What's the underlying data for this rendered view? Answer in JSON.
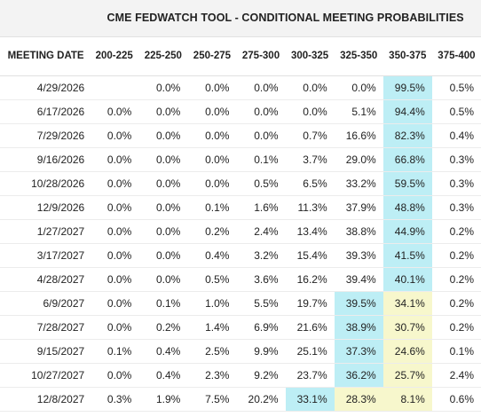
{
  "title": "CME FEDWATCH TOOL - CONDITIONAL MEETING PROBABILITIES",
  "date_header": "MEETING DATE",
  "colors": {
    "highest": "#bdeef5",
    "second": "#f7f7cc",
    "title_bg": "#f3f3f3"
  },
  "chart_data": {
    "type": "table",
    "title": "CME FEDWATCH TOOL - CONDITIONAL MEETING PROBABILITIES",
    "columns": [
      "200-225",
      "225-250",
      "250-275",
      "275-300",
      "300-325",
      "325-350",
      "350-375",
      "375-400"
    ],
    "rows": [
      {
        "date": "4/29/2026",
        "values": [
          "",
          "0.0%",
          "0.0%",
          "0.0%",
          "0.0%",
          "0.0%",
          "99.5%",
          "0.5%"
        ],
        "highlight": [
          "",
          "",
          "",
          "",
          "",
          "",
          "blue",
          ""
        ]
      },
      {
        "date": "6/17/2026",
        "values": [
          "0.0%",
          "0.0%",
          "0.0%",
          "0.0%",
          "0.0%",
          "5.1%",
          "94.4%",
          "0.5%"
        ],
        "highlight": [
          "",
          "",
          "",
          "",
          "",
          "",
          "blue",
          ""
        ]
      },
      {
        "date": "7/29/2026",
        "values": [
          "0.0%",
          "0.0%",
          "0.0%",
          "0.0%",
          "0.7%",
          "16.6%",
          "82.3%",
          "0.4%"
        ],
        "highlight": [
          "",
          "",
          "",
          "",
          "",
          "",
          "blue",
          ""
        ]
      },
      {
        "date": "9/16/2026",
        "values": [
          "0.0%",
          "0.0%",
          "0.0%",
          "0.1%",
          "3.7%",
          "29.0%",
          "66.8%",
          "0.3%"
        ],
        "highlight": [
          "",
          "",
          "",
          "",
          "",
          "",
          "blue",
          ""
        ]
      },
      {
        "date": "10/28/2026",
        "values": [
          "0.0%",
          "0.0%",
          "0.0%",
          "0.5%",
          "6.5%",
          "33.2%",
          "59.5%",
          "0.3%"
        ],
        "highlight": [
          "",
          "",
          "",
          "",
          "",
          "",
          "blue",
          ""
        ]
      },
      {
        "date": "12/9/2026",
        "values": [
          "0.0%",
          "0.0%",
          "0.1%",
          "1.6%",
          "11.3%",
          "37.9%",
          "48.8%",
          "0.3%"
        ],
        "highlight": [
          "",
          "",
          "",
          "",
          "",
          "",
          "blue",
          ""
        ]
      },
      {
        "date": "1/27/2027",
        "values": [
          "0.0%",
          "0.0%",
          "0.2%",
          "2.4%",
          "13.4%",
          "38.8%",
          "44.9%",
          "0.2%"
        ],
        "highlight": [
          "",
          "",
          "",
          "",
          "",
          "",
          "blue",
          ""
        ]
      },
      {
        "date": "3/17/2027",
        "values": [
          "0.0%",
          "0.0%",
          "0.4%",
          "3.2%",
          "15.4%",
          "39.3%",
          "41.5%",
          "0.2%"
        ],
        "highlight": [
          "",
          "",
          "",
          "",
          "",
          "",
          "blue",
          ""
        ]
      },
      {
        "date": "4/28/2027",
        "values": [
          "0.0%",
          "0.0%",
          "0.5%",
          "3.6%",
          "16.2%",
          "39.4%",
          "40.1%",
          "0.2%"
        ],
        "highlight": [
          "",
          "",
          "",
          "",
          "",
          "",
          "blue",
          ""
        ]
      },
      {
        "date": "6/9/2027",
        "values": [
          "0.0%",
          "0.1%",
          "1.0%",
          "5.5%",
          "19.7%",
          "39.5%",
          "34.1%",
          "0.2%"
        ],
        "highlight": [
          "",
          "",
          "",
          "",
          "",
          "blue",
          "yellow",
          ""
        ]
      },
      {
        "date": "7/28/2027",
        "values": [
          "0.0%",
          "0.2%",
          "1.4%",
          "6.9%",
          "21.6%",
          "38.9%",
          "30.7%",
          "0.2%"
        ],
        "highlight": [
          "",
          "",
          "",
          "",
          "",
          "blue",
          "yellow",
          ""
        ]
      },
      {
        "date": "9/15/2027",
        "values": [
          "0.1%",
          "0.4%",
          "2.5%",
          "9.9%",
          "25.1%",
          "37.3%",
          "24.6%",
          "0.1%"
        ],
        "highlight": [
          "",
          "",
          "",
          "",
          "",
          "blue",
          "yellow",
          ""
        ]
      },
      {
        "date": "10/27/2027",
        "values": [
          "0.0%",
          "0.4%",
          "2.3%",
          "9.2%",
          "23.7%",
          "36.2%",
          "25.7%",
          "2.4%"
        ],
        "highlight": [
          "",
          "",
          "",
          "",
          "",
          "blue",
          "yellow",
          ""
        ]
      },
      {
        "date": "12/8/2027",
        "values": [
          "0.3%",
          "1.9%",
          "7.5%",
          "20.2%",
          "33.1%",
          "28.3%",
          "8.1%",
          "0.6%"
        ],
        "highlight": [
          "",
          "",
          "",
          "",
          "blue",
          "yellow",
          "yellow",
          ""
        ]
      }
    ]
  }
}
